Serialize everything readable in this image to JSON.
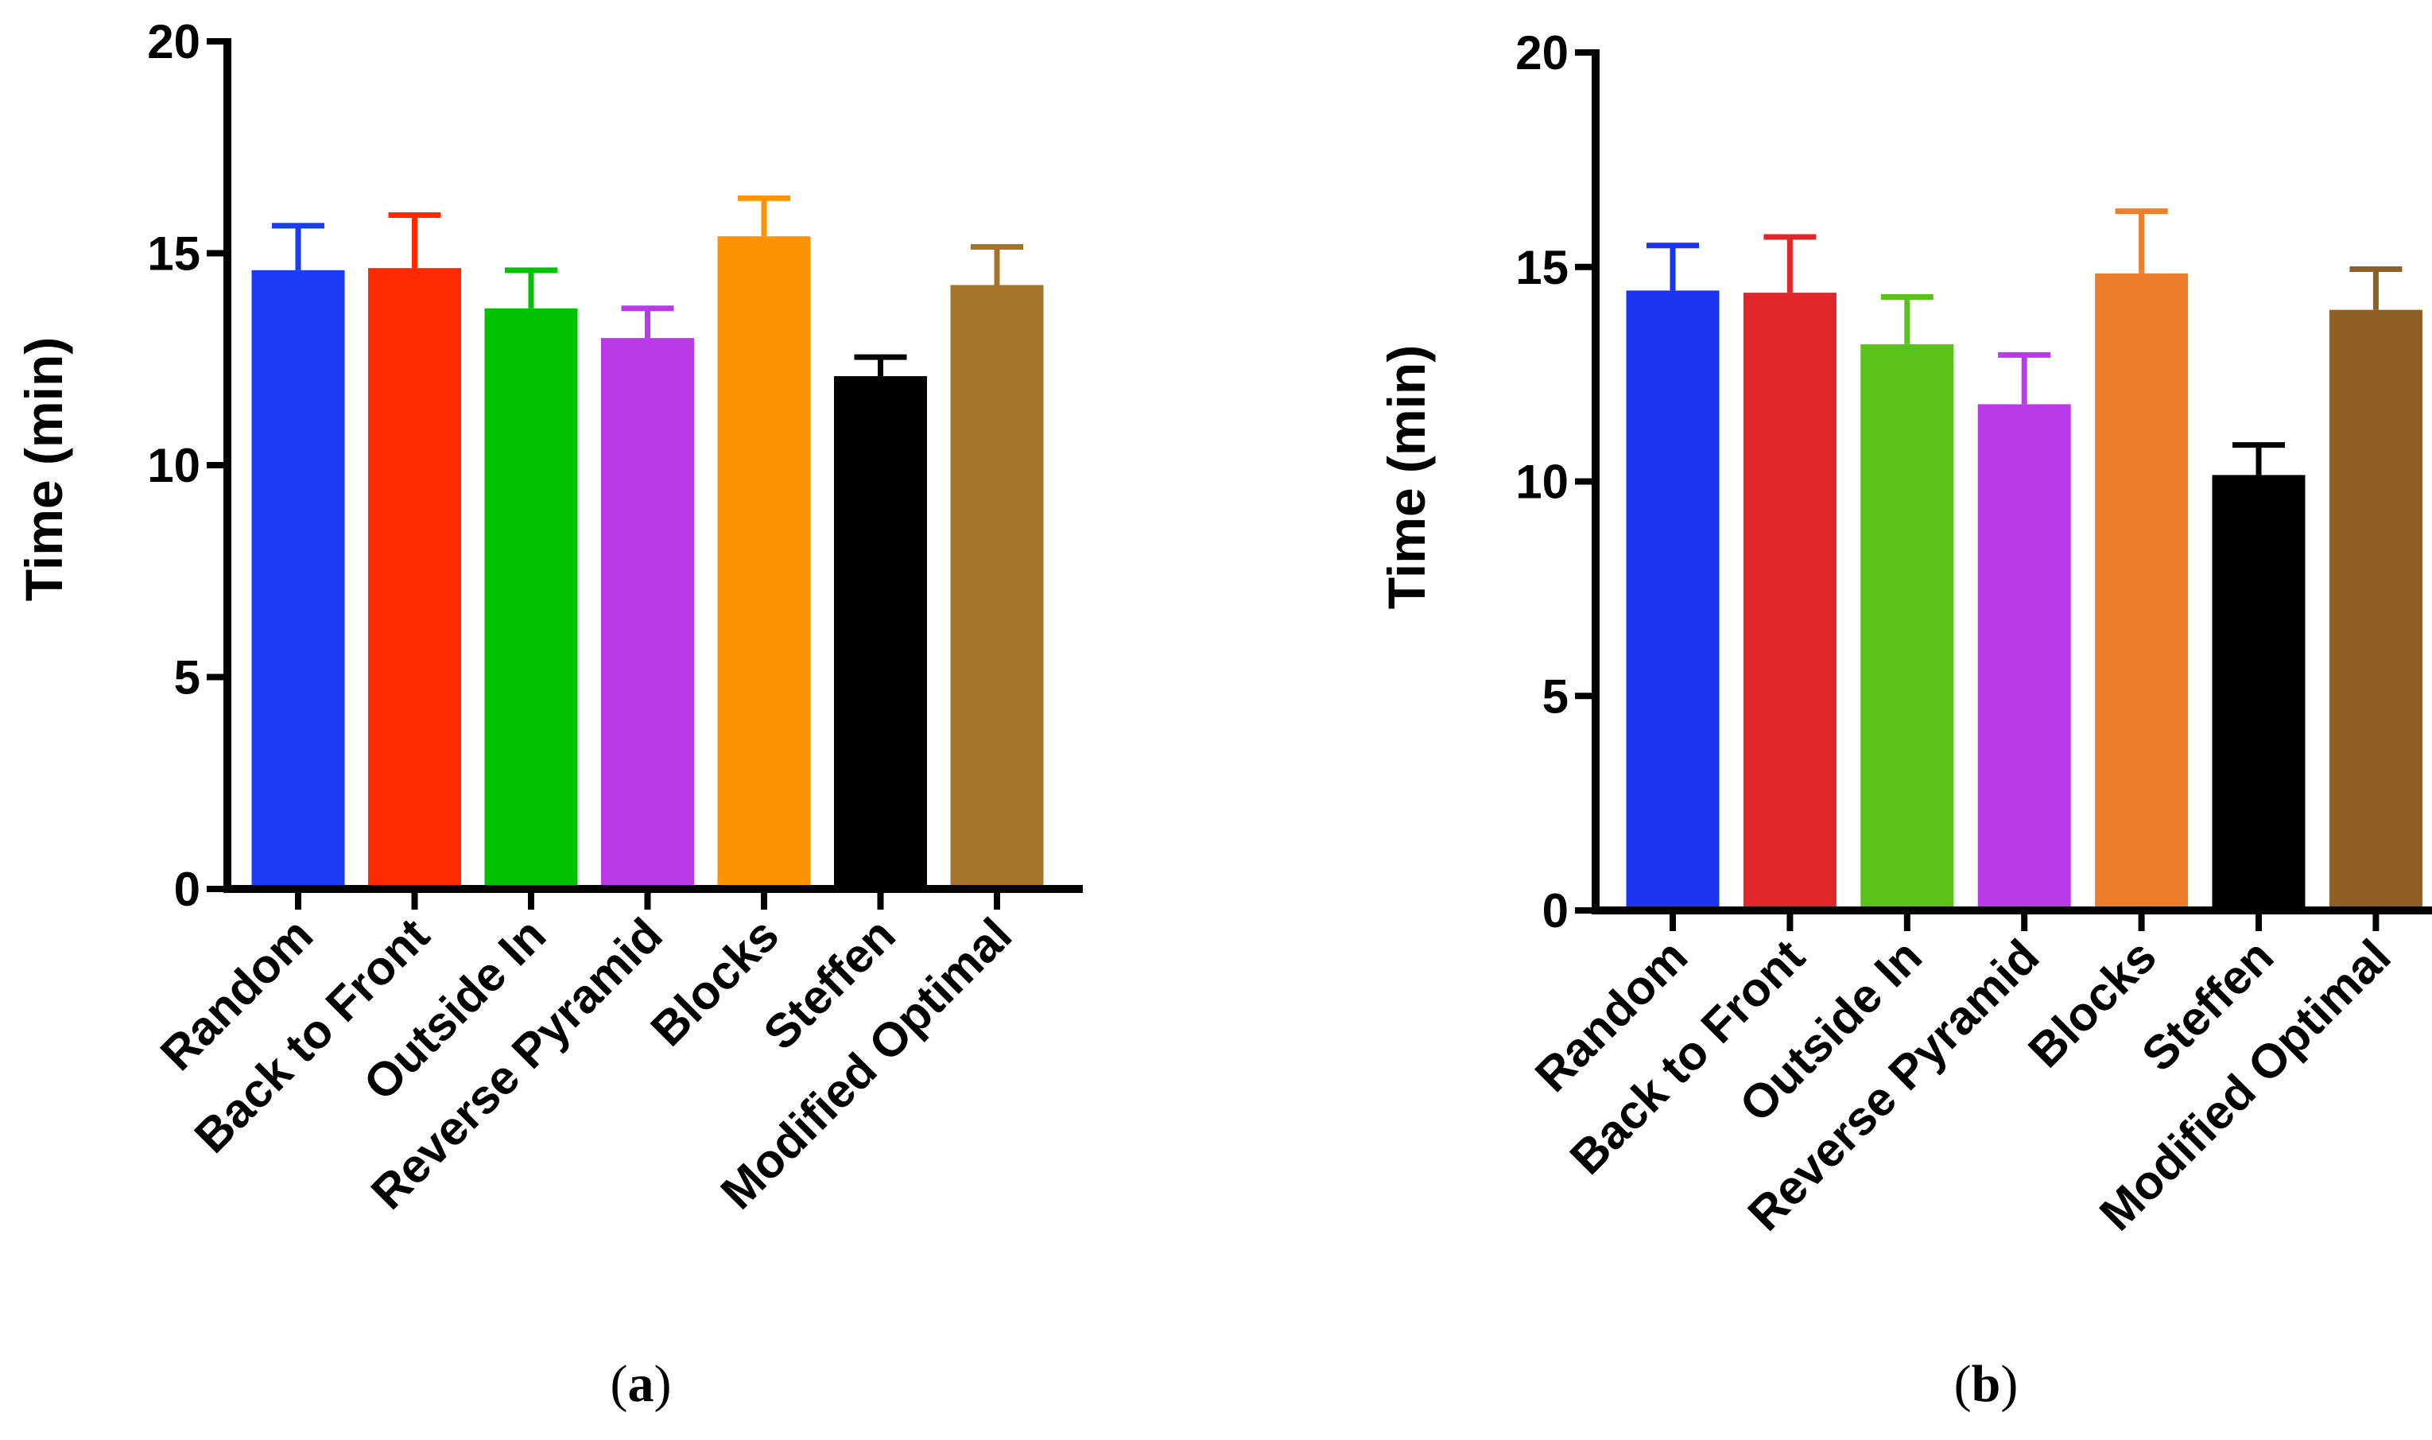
{
  "chart_data": [
    {
      "type": "bar",
      "panel_label": "a",
      "categories": [
        "Random",
        "Back to Front",
        "Outside In",
        "Reverse Pyramid",
        "Blocks",
        "Steffen",
        "Modified Optimal"
      ],
      "values": [
        14.6,
        14.65,
        13.7,
        13.0,
        15.4,
        12.1,
        14.25
      ],
      "errors": [
        1.05,
        1.25,
        0.9,
        0.7,
        0.9,
        0.45,
        0.9
      ],
      "colors": [
        "#1a3cf5",
        "#ff2a00",
        "#00c200",
        "#b93be8",
        "#ff9400",
        "#000000",
        "#a3742a"
      ],
      "ylabel": "Time (min)",
      "xlabel": "",
      "ylim": [
        0,
        20
      ],
      "yticks": [
        0,
        5,
        10,
        15,
        20
      ],
      "grid": false
    },
    {
      "type": "bar",
      "panel_label": "b",
      "categories": [
        "Random",
        "Back to Front",
        "Outside In",
        "Reverse Pyramid",
        "Blocks",
        "Steffen",
        "Modified Optimal"
      ],
      "values": [
        14.45,
        14.4,
        13.2,
        11.8,
        14.85,
        10.15,
        14.0
      ],
      "errors": [
        1.05,
        1.3,
        1.1,
        1.15,
        1.45,
        0.7,
        0.95
      ],
      "colors": [
        "#1a34f0",
        "#e0282b",
        "#5ac219",
        "#b93be8",
        "#ec7f2c",
        "#000000",
        "#8f5f24"
      ],
      "ylabel": "Time (min)",
      "xlabel": "",
      "ylim": [
        0,
        20
      ],
      "yticks": [
        0,
        5,
        10,
        15,
        20
      ],
      "grid": false
    }
  ]
}
